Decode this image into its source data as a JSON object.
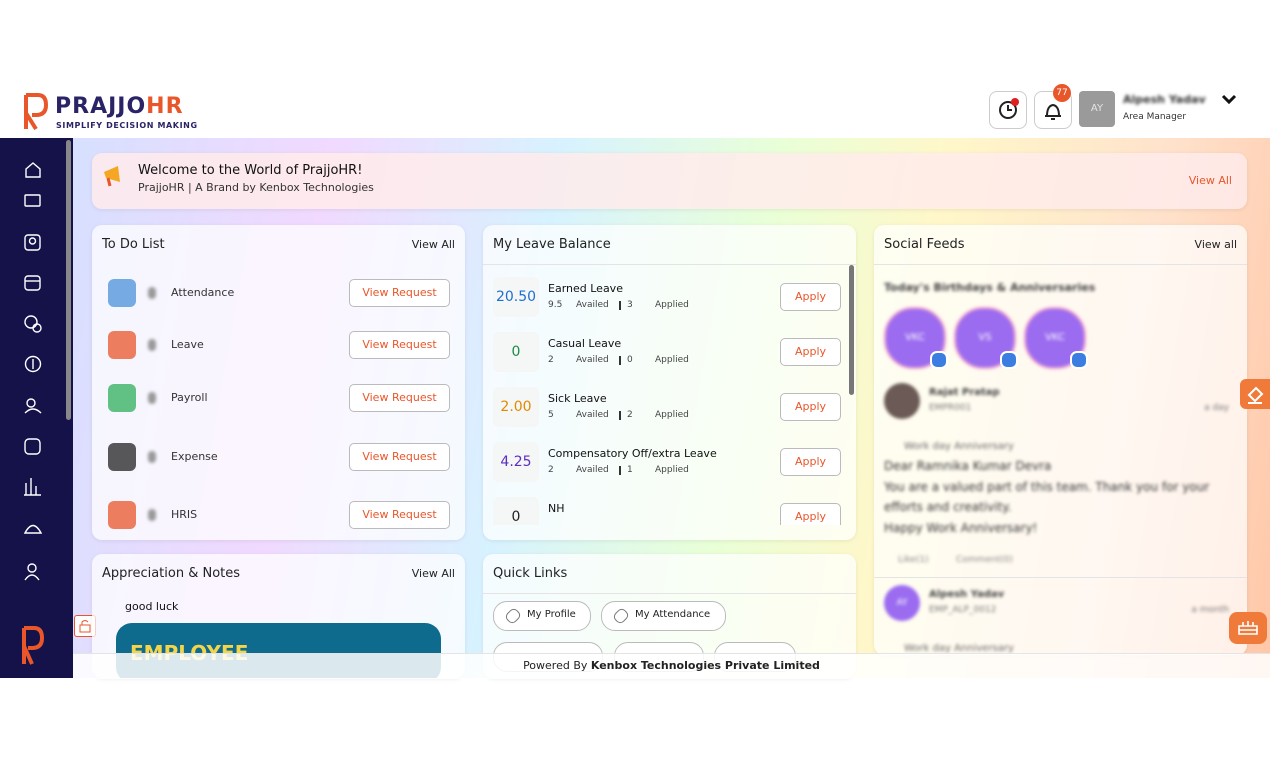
{
  "header": {
    "logo": {
      "brand": "PRAJJO",
      "brand_accent": "HR",
      "tagline": "SIMPLIFY DECISION MAKING"
    },
    "notification_count": "77",
    "user": {
      "initials": "AY",
      "name": "Alpesh Yadav",
      "role": "Area Manager"
    }
  },
  "banner": {
    "title": "Welcome to the World of PrajjoHR!",
    "subtitle": "PrajjoHR | A Brand by Kenbox Technologies",
    "link": "View All"
  },
  "todo": {
    "title": "To Do List",
    "link": "View All",
    "button": "View Request",
    "items": [
      "Attendance",
      "Leave",
      "Payroll",
      "Expense",
      "HRIS"
    ]
  },
  "leave": {
    "title": "My Leave Balance",
    "button": "Apply",
    "availed_label": "Availed",
    "applied_label": "Applied",
    "items": [
      {
        "balance": "20.50",
        "name": "Earned Leave",
        "availed": "9.5",
        "applied": "3"
      },
      {
        "balance": "0",
        "name": "Casual Leave",
        "availed": "2",
        "applied": "0"
      },
      {
        "balance": "2.00",
        "name": "Sick Leave",
        "availed": "5",
        "applied": "2"
      },
      {
        "balance": "4.25",
        "name": "Compensatory Off/extra Leave",
        "availed": "2",
        "applied": "1"
      },
      {
        "balance": "0",
        "name": "NH"
      }
    ]
  },
  "social": {
    "title": "Social Feeds",
    "link": "View all",
    "birthdays_title": "Today's Birthdays & Anniversaries",
    "avatars": [
      "VKC",
      "VS",
      "VKC"
    ],
    "posts": [
      {
        "initials": "",
        "author": "Rajat Pratap",
        "emp_id": "EMPR001",
        "time": "a day",
        "tag": "Work day Anniversary",
        "lines": [
          "Dear Ramnika Kumar Devra",
          "You are a valued part of this team. Thank you for your",
          "efforts and creativity.",
          "Happy Work Anniversary!"
        ],
        "like": "Like(1)",
        "comment": "Comment(0)"
      },
      {
        "initials": "AY",
        "author": "Alpesh Yadav",
        "emp_id": "EMP_ALP_0012",
        "time": "a month",
        "tag": "Work day Anniversary"
      }
    ]
  },
  "appreciation": {
    "title": "Appreciation & Notes",
    "link": "View All",
    "note": "good luck",
    "card_text": "EMPLOYEE"
  },
  "quick_links": {
    "title": "Quick Links",
    "links": [
      "My Profile",
      "My Attendance"
    ]
  },
  "footer": {
    "prefix": "Powered By",
    "company": "Kenbox Technologies Private Limited"
  }
}
